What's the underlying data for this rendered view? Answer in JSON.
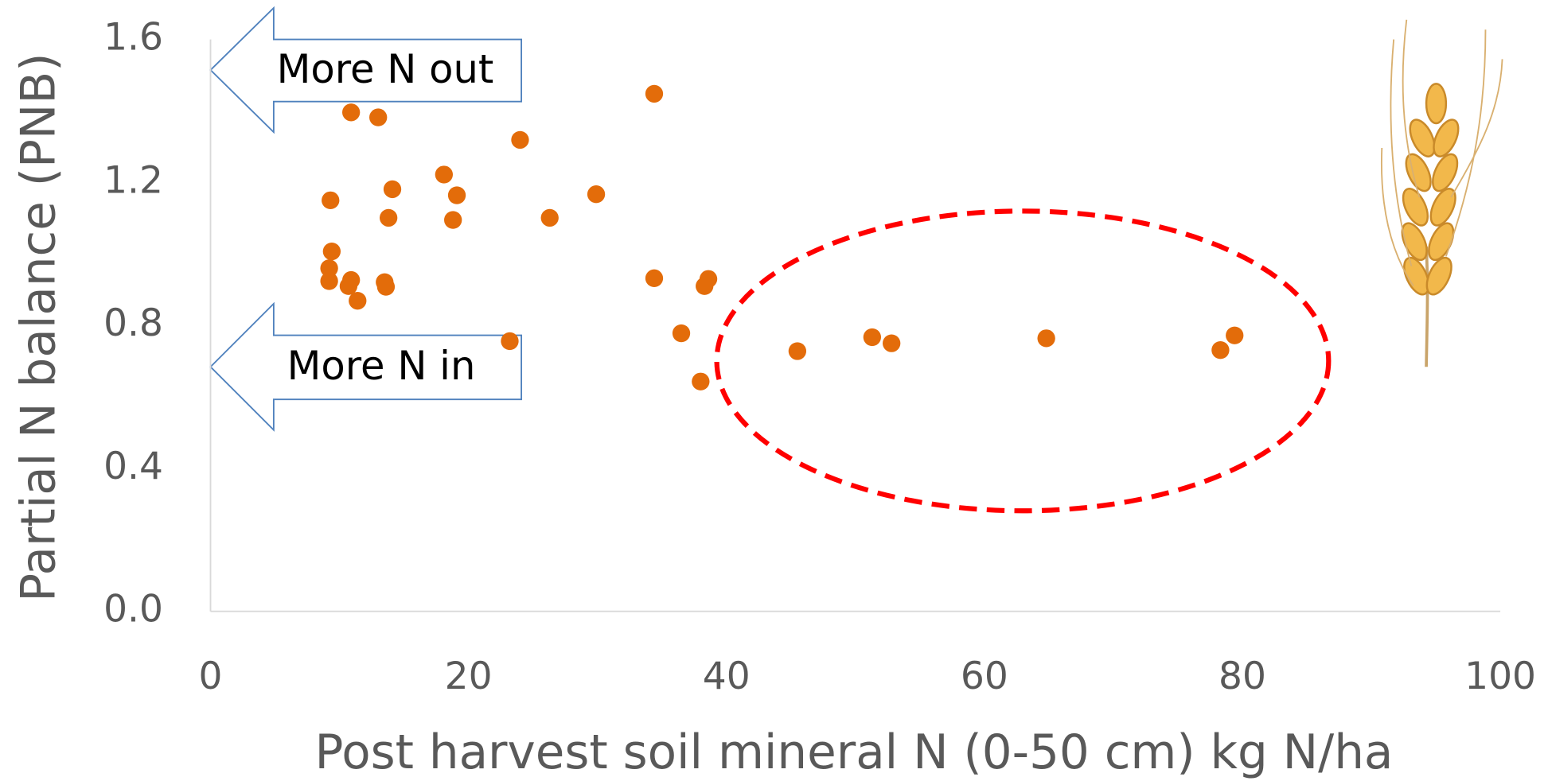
{
  "chart_data": {
    "type": "scatter",
    "xlabel": "Post harvest soil mineral N (0-50 cm) kg N/ha",
    "ylabel": "Partial N balance (PNB)",
    "annotations": [
      "More N out",
      "More N in"
    ],
    "color": "#e36c0a",
    "x": [
      10.9,
      13.0,
      9.3,
      14.1,
      13.8,
      18.1,
      19.1,
      18.8,
      9.4,
      9.2,
      9.2,
      10.9,
      10.7,
      13.5,
      13.6,
      11.4,
      24.0,
      26.3,
      29.9,
      34.4,
      34.4,
      38.6,
      38.3,
      36.5,
      23.2,
      38.0,
      45.5,
      51.3,
      52.8,
      64.8,
      78.3,
      79.4
    ],
    "y": [
      1.396,
      1.382,
      1.15,
      1.181,
      1.101,
      1.222,
      1.164,
      1.095,
      1.007,
      0.96,
      0.924,
      0.927,
      0.91,
      0.921,
      0.908,
      0.869,
      1.319,
      1.101,
      1.167,
      1.448,
      0.932,
      0.93,
      0.91,
      0.778,
      0.756,
      0.643,
      0.728,
      0.767,
      0.75,
      0.764,
      0.731,
      0.772
    ],
    "xlim": [
      0,
      100
    ],
    "xticks": [
      0,
      20,
      40,
      60,
      80,
      100
    ],
    "ylim": [
      0,
      1.6
    ],
    "yticks": [
      {
        "value": 0,
        "label": "0.0"
      },
      {
        "value": 0.4,
        "label": "0.4"
      },
      {
        "value": 0.8,
        "label": "0.8"
      },
      {
        "value": 1.2,
        "label": "1.2"
      },
      {
        "value": 1.6,
        "label": "1.6"
      }
    ],
    "grid": false
  }
}
